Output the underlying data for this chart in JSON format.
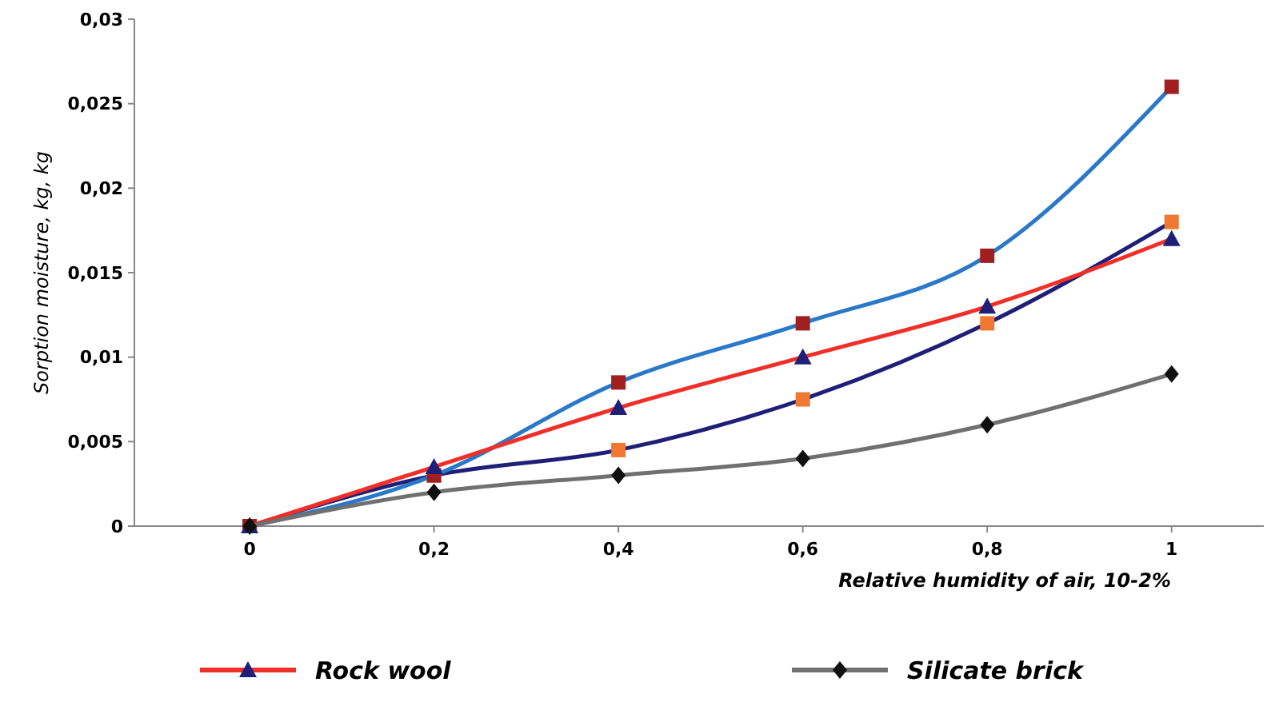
{
  "chart_data": {
    "type": "line",
    "xlabel": "Relative humidity of air, 10-2%",
    "ylabel": "Sorption moisture, kg, kg",
    "x": [
      0,
      0.2,
      0.4,
      0.6,
      0.8,
      1
    ],
    "xlim": [
      -0.125,
      1.1
    ],
    "xticks": [
      0,
      {
        "value": 0.2,
        "label": "0,2"
      },
      {
        "value": 0.4,
        "label": "0,4"
      },
      {
        "value": 0.6,
        "label": "0,6"
      },
      {
        "value": 0.8,
        "label": "0,8"
      },
      1
    ],
    "ylim": [
      0,
      0.03
    ],
    "yticks": [
      0,
      {
        "value": 0.005,
        "label": "0,005"
      },
      {
        "value": 0.01,
        "label": "0,01"
      },
      {
        "value": 0.015,
        "label": "0,015"
      },
      {
        "value": 0.02,
        "label": "0,02"
      },
      {
        "value": 0.025,
        "label": "0,025"
      },
      {
        "value": 0.03,
        "label": "0,03"
      }
    ],
    "grid": false,
    "legend": "bottom",
    "series": [
      {
        "color": "#1f1f78",
        "colors": [
          "#f07830",
          "#f07830",
          "#f07830",
          "#f07830",
          "#f07830",
          "#f07830"
        ],
        "marker": "square",
        "values": [
          0,
          0.003,
          0.0045,
          0.0075,
          0.012,
          0.018
        ]
      },
      {
        "color": "#2a78c8",
        "colors": [
          "#a02020",
          "#a02020",
          "#a02020",
          "#a02020",
          "#a02020",
          "#a02020"
        ],
        "marker": "square",
        "values": [
          0,
          0.003,
          0.0085,
          0.012,
          0.016,
          0.026
        ]
      },
      {
        "name": "Rock wool",
        "color": "#f03028",
        "colors": [
          "#1f1f78",
          "#1f1f78",
          "#1f1f78",
          "#1f1f78",
          "#1f1f78",
          "#1f1f78"
        ],
        "marker": "triangle",
        "values": [
          0,
          0.0035,
          0.007,
          0.01,
          0.013,
          0.017
        ]
      },
      {
        "name": "Silicate brick",
        "color": "#707070",
        "colors": [
          "#101010",
          "#101010",
          "#101010",
          "#101010",
          "#101010",
          "#101010"
        ],
        "marker": "diamond",
        "values": [
          0,
          0.002,
          0.003,
          0.004,
          0.006,
          0.009
        ]
      }
    ]
  }
}
